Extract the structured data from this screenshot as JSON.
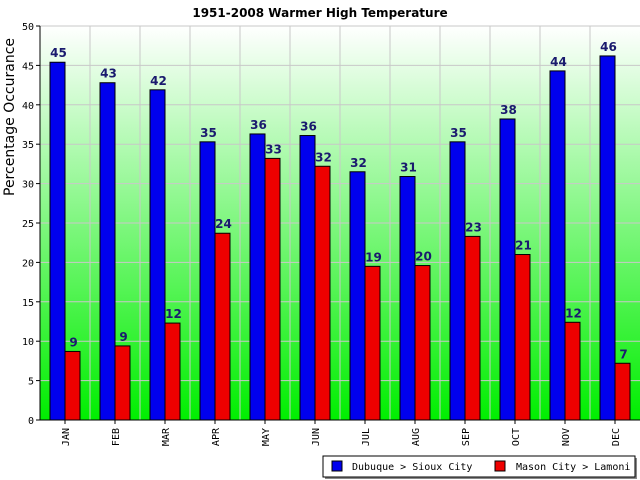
{
  "chart_data": {
    "type": "bar",
    "title": "1951-2008 Warmer High Temperature",
    "xlabel": "",
    "ylabel": "Percentage Occurance",
    "ylim": [
      0,
      50
    ],
    "yticks": [
      0,
      5,
      10,
      15,
      20,
      25,
      30,
      35,
      40,
      45,
      50
    ],
    "categories": [
      "JAN",
      "FEB",
      "MAR",
      "APR",
      "MAY",
      "JUN",
      "JUL",
      "AUG",
      "SEP",
      "OCT",
      "NOV",
      "DEC"
    ],
    "series": [
      {
        "name": "Dubuque > Sioux City",
        "color": "#0000ee",
        "values": [
          45.4,
          42.8,
          41.9,
          35.3,
          36.3,
          36.1,
          31.5,
          30.9,
          35.3,
          38.2,
          44.3,
          46.2
        ],
        "labels": [
          "45",
          "43",
          "42",
          "35",
          "36",
          "36",
          "32",
          "31",
          "35",
          "38",
          "44",
          "46"
        ]
      },
      {
        "name": "Mason City > Lamoni",
        "color": "#ee0000",
        "values": [
          8.7,
          9.4,
          12.3,
          23.7,
          33.2,
          32.2,
          19.5,
          19.6,
          23.3,
          21.0,
          12.4,
          7.2
        ],
        "labels": [
          "9",
          "9",
          "12",
          "24",
          "33",
          "32",
          "19",
          "20",
          "23",
          "21",
          "12",
          "7"
        ]
      }
    ],
    "grid": true,
    "legend_position": "bottom-right",
    "background": "gradient white-to-green"
  }
}
